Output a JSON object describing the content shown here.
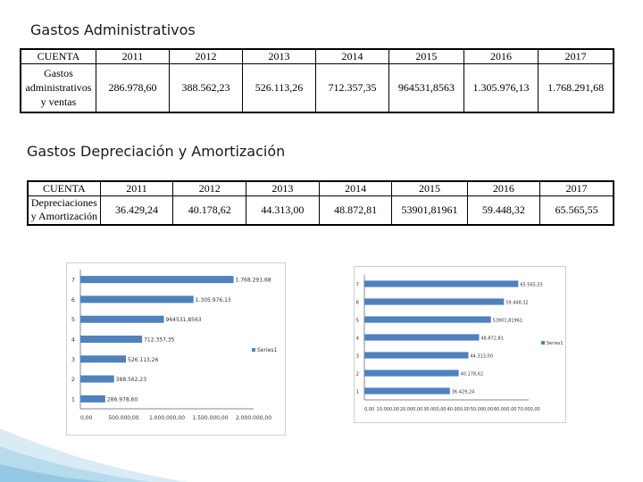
{
  "section1": {
    "title": "Gastos Administrativos",
    "header": [
      "CUENTA",
      "2011",
      "2012",
      "2013",
      "2014",
      "2015",
      "2016",
      "2017"
    ],
    "row_label": "Gastos administrativos y ventas",
    "values": [
      "286.978,60",
      "388.562,23",
      "526.113,26",
      "712.357,35",
      "964531,8563",
      "1.305.976,13",
      "1.768.291,68"
    ]
  },
  "section2": {
    "title": "Gastos Depreciación y Amortización",
    "header": [
      "CUENTA",
      "2011",
      "2012",
      "2013",
      "2014",
      "2015",
      "2016",
      "2017"
    ],
    "row_label": "Depreciaciones y Amortización",
    "values": [
      "36.429,24",
      "40.178,62",
      "44.313,00",
      "48.872,81",
      "53901,81961",
      "59.448,32",
      "65.565,55"
    ]
  },
  "chart_data": [
    {
      "type": "bar",
      "orientation": "horizontal",
      "categories": [
        "1",
        "2",
        "3",
        "4",
        "5",
        "6",
        "7"
      ],
      "series": [
        {
          "name": "Series1",
          "values": [
            286978.6,
            388562.23,
            526113.26,
            712357.35,
            964531.8563,
            1305976.13,
            1768291.68
          ],
          "labels": [
            "286.978,60",
            "388.562,23",
            "526.113,26",
            "712.357,35",
            "964531,8563",
            "1.305.976,13",
            "1.768.291,68"
          ]
        }
      ],
      "xlim": [
        0,
        2000000
      ],
      "xticks": [
        0,
        500000,
        1000000,
        1500000,
        2000000
      ],
      "xtick_labels": [
        "0,00",
        "500.000,00",
        "1.000.000,00",
        "1.500.000,00",
        "2.000.000,00"
      ],
      "legend": "right",
      "bar_color": "#4f81bd"
    },
    {
      "type": "bar",
      "orientation": "horizontal",
      "categories": [
        "1",
        "2",
        "3",
        "4",
        "5",
        "6",
        "7"
      ],
      "series": [
        {
          "name": "Series1",
          "values": [
            36429.24,
            40178.62,
            44313.0,
            48872.81,
            53901.81961,
            59448.32,
            65565.55
          ],
          "labels": [
            "36.429,24",
            "40.178,62",
            "44.313,00",
            "48.872,81",
            "53901,81961",
            "59.448,32",
            "65.565,55"
          ]
        }
      ],
      "xlim": [
        0,
        70000
      ],
      "xticks": [
        0,
        10000,
        20000,
        30000,
        40000,
        50000,
        60000,
        70000
      ],
      "xtick_labels": [
        "0,00",
        "10.000,00",
        "20.000,00",
        "30.000,00",
        "40.000,00",
        "50.000,00",
        "60.000,00",
        "70.000,00"
      ],
      "legend": "right",
      "bar_color": "#4f81bd"
    }
  ]
}
